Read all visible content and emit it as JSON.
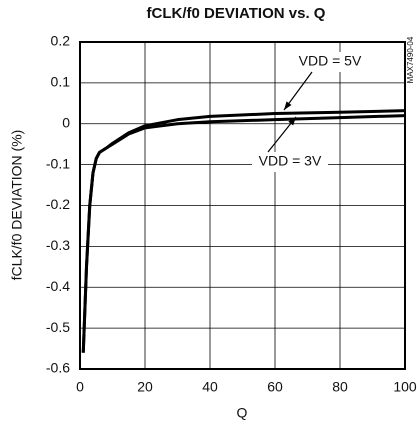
{
  "chart_data": {
    "type": "line",
    "title": "fCLK/f0 DEVIATION vs. Q",
    "x_label": "Q",
    "y_label": "fCLK/f0 DEVIATION (%)",
    "side_note": "MAX7490-04",
    "x": [
      1,
      2,
      3,
      4,
      5,
      6,
      8,
      10,
      15,
      20,
      30,
      40,
      60,
      80,
      100
    ],
    "series": [
      {
        "name": "VDD = 5V",
        "color": "#000000",
        "values": [
          -0.56,
          -0.35,
          -0.2,
          -0.12,
          -0.085,
          -0.07,
          -0.06,
          -0.048,
          -0.022,
          -0.005,
          0.01,
          0.018,
          0.025,
          0.028,
          0.032
        ]
      },
      {
        "name": "VDD = 3V",
        "color": "#000000",
        "values": [
          -0.56,
          -0.35,
          -0.2,
          -0.12,
          -0.085,
          -0.07,
          -0.06,
          -0.05,
          -0.025,
          -0.01,
          0.0,
          0.005,
          0.01,
          0.015,
          0.02
        ]
      }
    ],
    "xlim": [
      0,
      100
    ],
    "xticks": [
      0,
      20,
      40,
      60,
      80,
      100
    ],
    "ylim": [
      -0.6,
      0.2
    ],
    "yticks": [
      -0.6,
      -0.5,
      -0.4,
      -0.3,
      -0.2,
      -0.1,
      0,
      0.1,
      0.2
    ],
    "grid": true
  }
}
